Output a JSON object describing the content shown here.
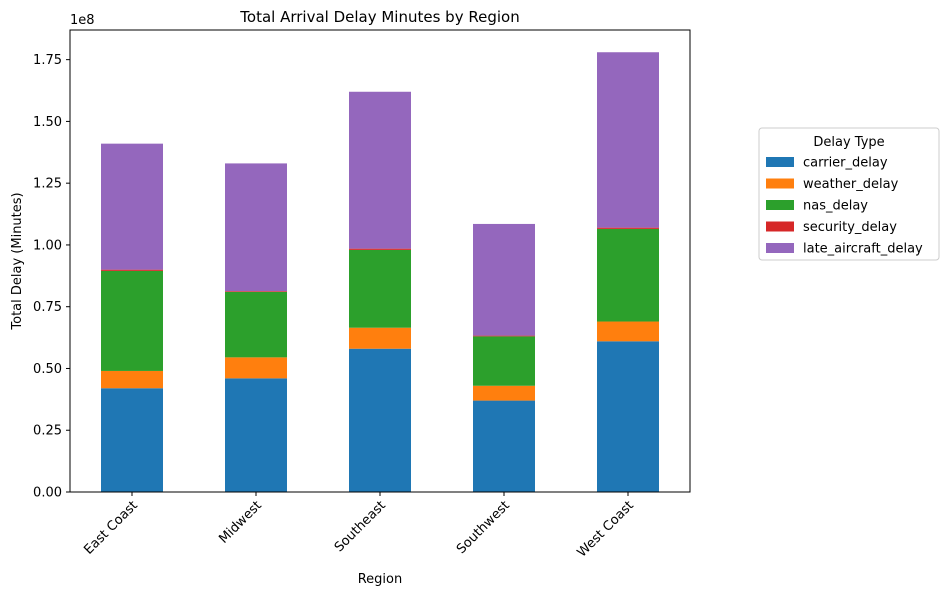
{
  "chart_data": {
    "type": "bar",
    "stacked": true,
    "title": "Total Arrival Delay Minutes by Region",
    "xlabel": "Region",
    "ylabel": "Total Delay (Minutes)",
    "y_scale_label": "1e8",
    "ylim": [
      0,
      187000000
    ],
    "y_ticks": [
      {
        "value": 0,
        "label": "0.00"
      },
      {
        "value": 25000000,
        "label": "0.25"
      },
      {
        "value": 50000000,
        "label": "0.50"
      },
      {
        "value": 75000000,
        "label": "0.75"
      },
      {
        "value": 100000000,
        "label": "1.00"
      },
      {
        "value": 125000000,
        "label": "1.25"
      },
      {
        "value": 150000000,
        "label": "1.50"
      },
      {
        "value": 175000000,
        "label": "1.75"
      }
    ],
    "categories": [
      "East Coast",
      "Midwest",
      "Southeast",
      "Southwest",
      "West Coast"
    ],
    "series": [
      {
        "name": "carrier_delay",
        "color": "#1f77b4",
        "values": [
          42000000,
          46000000,
          58000000,
          37000000,
          61000000
        ]
      },
      {
        "name": "weather_delay",
        "color": "#ff7f0e",
        "values": [
          7000000,
          8500000,
          8500000,
          6000000,
          8000000
        ]
      },
      {
        "name": "nas_delay",
        "color": "#2ca02c",
        "values": [
          40500000,
          26500000,
          31500000,
          20000000,
          37500000
        ]
      },
      {
        "name": "security_delay",
        "color": "#d62728",
        "values": [
          500000,
          300000,
          500000,
          300000,
          500000
        ]
      },
      {
        "name": "late_aircraft_delay",
        "color": "#9467bd",
        "values": [
          51000000,
          51700000,
          63500000,
          45200000,
          71000000
        ]
      }
    ],
    "legend": {
      "title": "Delay Type",
      "placement": "right"
    },
    "grid": false
  }
}
